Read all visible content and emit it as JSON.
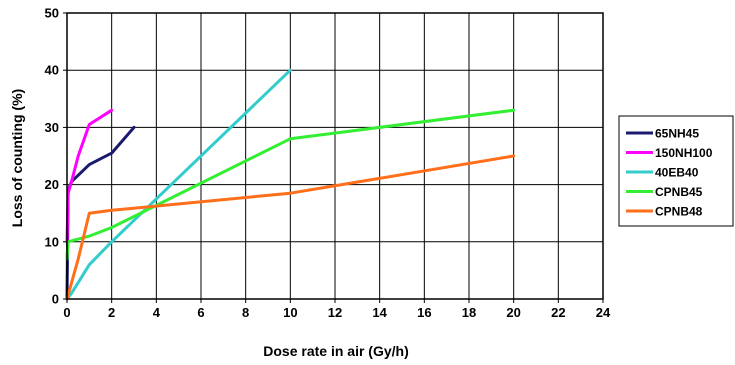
{
  "chart_data": {
    "type": "line",
    "xlabel": "Dose rate in air (Gy/h)",
    "ylabel": "Loss of counting (%)",
    "xlim": [
      0,
      24
    ],
    "ylim": [
      0,
      50
    ],
    "x_ticks": [
      0,
      2,
      4,
      6,
      8,
      10,
      12,
      14,
      16,
      18,
      20,
      22,
      24
    ],
    "y_ticks": [
      0,
      10,
      20,
      30,
      40,
      50
    ],
    "grid": true,
    "legend_position": "right",
    "series": [
      {
        "name": "65NH45",
        "color": "#1a1a6e",
        "x": [
          0,
          0.05,
          0.2,
          1,
          2,
          3
        ],
        "y": [
          0,
          19,
          20.5,
          23.5,
          25.5,
          30
        ]
      },
      {
        "name": "150NH100",
        "color": "#ff00ff",
        "x": [
          0,
          0.05,
          0.2,
          0.5,
          1,
          2
        ],
        "y": [
          10,
          18.5,
          20.5,
          25,
          30.5,
          33
        ]
      },
      {
        "name": "40EB40",
        "color": "#33cccc",
        "x": [
          0,
          0.2,
          1,
          2,
          10
        ],
        "y": [
          0,
          1,
          6,
          10,
          40
        ]
      },
      {
        "name": "CPNB45",
        "color": "#33ee33",
        "x": [
          0,
          0.05,
          1,
          2,
          10,
          20
        ],
        "y": [
          7,
          10,
          11,
          12.5,
          28,
          33
        ]
      },
      {
        "name": "CPNB48",
        "color": "#ff6f1a",
        "x": [
          0,
          0.5,
          1,
          2,
          10,
          20
        ],
        "y": [
          0,
          7,
          15,
          15.5,
          18.5,
          25
        ]
      }
    ]
  }
}
